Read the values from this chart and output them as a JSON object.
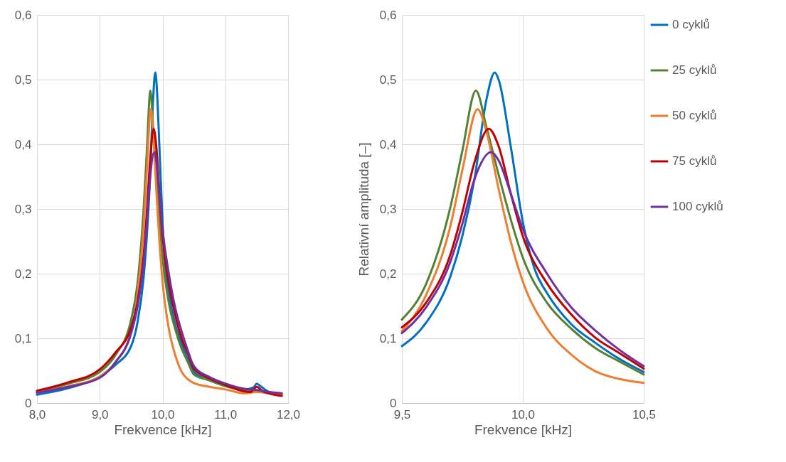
{
  "chart_data": [
    {
      "type": "line",
      "xlabel": "Frekvence [kHz]",
      "xlim": [
        8,
        12
      ],
      "xticks": [
        {
          "value": 8,
          "label": "8,0"
        },
        {
          "value": 9,
          "label": "9,0"
        },
        {
          "value": 10,
          "label": "10,0"
        },
        {
          "value": 11,
          "label": "11,0"
        },
        {
          "value": 12,
          "label": "12,0"
        }
      ],
      "ylim": [
        0,
        0.6
      ],
      "yticks": [
        0,
        {
          "value": 0.1,
          "label": "0,1"
        },
        {
          "value": 0.2,
          "label": "0,2"
        },
        {
          "value": 0.3,
          "label": "0,3"
        },
        {
          "value": 0.4,
          "label": "0,4"
        },
        {
          "value": 0.5,
          "label": "0,5"
        },
        {
          "value": 0.6,
          "label": "0,6"
        }
      ],
      "grid": true,
      "legend": false,
      "line_style": "solid",
      "marker": "none",
      "series": [
        {
          "color": "#0070c0",
          "x": [
            8,
            8.5,
            9,
            9.25,
            9.5,
            9.6,
            9.7,
            9.75,
            9.8,
            9.85,
            9.884,
            9.9,
            9.95,
            10,
            10.05,
            10.1,
            10.2,
            10.3,
            10.4,
            10.5,
            10.75,
            11,
            11.3,
            11.45,
            11.5,
            11.56,
            11.7,
            11.9
          ],
          "values": [
            0.013,
            0.023,
            0.041,
            0.059,
            0.088,
            0.124,
            0.195,
            0.258,
            0.346,
            0.47,
            0.511,
            0.5,
            0.397,
            0.28,
            0.206,
            0.17,
            0.122,
            0.093,
            0.068,
            0.048,
            0.035,
            0.027,
            0.021,
            0.024,
            0.03,
            0.026,
            0.017,
            0.014
          ]
        },
        {
          "color": "#548235",
          "x": [
            8,
            8.5,
            9,
            9.25,
            9.5,
            9.6,
            9.7,
            9.75,
            9.806,
            9.85,
            9.9,
            9.95,
            10,
            10.1,
            10.2,
            10.3,
            10.4,
            10.5,
            10.75,
            11,
            11.3,
            11.5,
            11.7,
            11.9
          ],
          "values": [
            0.018,
            0.03,
            0.048,
            0.074,
            0.129,
            0.184,
            0.302,
            0.39,
            0.483,
            0.426,
            0.353,
            0.284,
            0.225,
            0.155,
            0.115,
            0.085,
            0.064,
            0.044,
            0.035,
            0.026,
            0.02,
            0.019,
            0.016,
            0.014
          ]
        },
        {
          "color": "#ed7d31",
          "x": [
            8,
            8.5,
            9,
            9.25,
            9.5,
            9.6,
            9.7,
            9.75,
            9.813,
            9.85,
            9.9,
            9.95,
            10,
            10.1,
            10.2,
            10.3,
            10.4,
            10.5,
            10.75,
            11,
            11.3,
            11.5,
            11.7,
            11.9
          ],
          "values": [
            0.016,
            0.026,
            0.041,
            0.063,
            0.111,
            0.167,
            0.273,
            0.36,
            0.454,
            0.419,
            0.331,
            0.25,
            0.188,
            0.115,
            0.075,
            0.049,
            0.037,
            0.031,
            0.025,
            0.021,
            0.015,
            0.017,
            0.015,
            0.013
          ]
        },
        {
          "color": "#c00000",
          "x": [
            8,
            8.5,
            9,
            9.25,
            9.5,
            9.6,
            9.7,
            9.75,
            9.8,
            9.859,
            9.9,
            9.95,
            10,
            10.1,
            10.2,
            10.3,
            10.4,
            10.5,
            10.75,
            11,
            11.3,
            11.4,
            11.5,
            11.6,
            11.9
          ],
          "values": [
            0.019,
            0.032,
            0.052,
            0.078,
            0.117,
            0.155,
            0.229,
            0.295,
            0.372,
            0.424,
            0.397,
            0.324,
            0.258,
            0.185,
            0.137,
            0.101,
            0.077,
            0.053,
            0.038,
            0.028,
            0.018,
            0.017,
            0.025,
            0.018,
            0.011
          ]
        },
        {
          "color": "#7030a0",
          "x": [
            8,
            8.5,
            9,
            9.25,
            9.5,
            9.6,
            9.7,
            9.75,
            9.8,
            9.869,
            9.9,
            9.95,
            10,
            10.1,
            10.2,
            10.3,
            10.4,
            10.5,
            10.75,
            11,
            11.3,
            11.5,
            11.7,
            11.9
          ],
          "values": [
            0.016,
            0.025,
            0.039,
            0.063,
            0.108,
            0.148,
            0.218,
            0.277,
            0.346,
            0.388,
            0.375,
            0.324,
            0.269,
            0.2,
            0.148,
            0.112,
            0.082,
            0.057,
            0.04,
            0.03,
            0.022,
            0.02,
            0.017,
            0.015
          ]
        }
      ]
    },
    {
      "type": "line",
      "xlabel": "Frekvence [kHz]",
      "ylabel": "Relativní amplituda [–]",
      "xlim": [
        9.5,
        10.5
      ],
      "xticks": [
        {
          "value": 9.5,
          "label": "9,5"
        },
        {
          "value": 10,
          "label": "10,0"
        },
        {
          "value": 10.5,
          "label": "10,5"
        }
      ],
      "ylim": [
        0,
        0.6
      ],
      "yticks": [
        0,
        {
          "value": 0.1,
          "label": "0,1"
        },
        {
          "value": 0.2,
          "label": "0,2"
        },
        {
          "value": 0.3,
          "label": "0,3"
        },
        {
          "value": 0.4,
          "label": "0,4"
        },
        {
          "value": 0.5,
          "label": "0,5"
        },
        {
          "value": 0.6,
          "label": "0,6"
        }
      ],
      "grid": true,
      "legend": "right",
      "line_style": "solid",
      "marker": "none",
      "series": [
        {
          "name": "0 cyklů",
          "color": "#0070c0",
          "x": [
            9.5,
            9.6,
            9.7,
            9.75,
            9.8,
            9.85,
            9.884,
            9.9,
            9.95,
            10,
            10.05,
            10.1,
            10.2,
            10.3,
            10.4,
            10.5
          ],
          "values": [
            0.088,
            0.124,
            0.195,
            0.258,
            0.346,
            0.47,
            0.511,
            0.5,
            0.397,
            0.28,
            0.206,
            0.17,
            0.122,
            0.093,
            0.068,
            0.048
          ]
        },
        {
          "name": "25 cyklů",
          "color": "#548235",
          "x": [
            9.5,
            9.6,
            9.7,
            9.75,
            9.806,
            9.85,
            9.9,
            9.95,
            10,
            10.1,
            10.2,
            10.3,
            10.4,
            10.5
          ],
          "values": [
            0.129,
            0.184,
            0.302,
            0.39,
            0.483,
            0.426,
            0.353,
            0.284,
            0.225,
            0.155,
            0.115,
            0.085,
            0.064,
            0.044
          ]
        },
        {
          "name": "50 cyklů",
          "color": "#ed7d31",
          "x": [
            9.5,
            9.6,
            9.7,
            9.75,
            9.813,
            9.85,
            9.9,
            9.95,
            10,
            10.1,
            10.2,
            10.3,
            10.4,
            10.5
          ],
          "values": [
            0.111,
            0.167,
            0.273,
            0.36,
            0.454,
            0.419,
            0.331,
            0.25,
            0.188,
            0.115,
            0.075,
            0.049,
            0.037,
            0.031
          ]
        },
        {
          "name": "75 cyklů",
          "color": "#c00000",
          "x": [
            9.5,
            9.6,
            9.7,
            9.75,
            9.8,
            9.859,
            9.9,
            9.95,
            10,
            10.1,
            10.2,
            10.3,
            10.4,
            10.5
          ],
          "values": [
            0.117,
            0.155,
            0.229,
            0.295,
            0.372,
            0.424,
            0.397,
            0.324,
            0.258,
            0.185,
            0.137,
            0.101,
            0.077,
            0.053
          ]
        },
        {
          "name": "100 cyklů",
          "color": "#7030a0",
          "x": [
            9.5,
            9.6,
            9.7,
            9.75,
            9.8,
            9.869,
            9.9,
            9.95,
            10,
            10.1,
            10.2,
            10.3,
            10.4,
            10.5
          ],
          "values": [
            0.108,
            0.148,
            0.218,
            0.277,
            0.346,
            0.388,
            0.375,
            0.324,
            0.269,
            0.2,
            0.148,
            0.112,
            0.082,
            0.057
          ]
        }
      ]
    }
  ]
}
